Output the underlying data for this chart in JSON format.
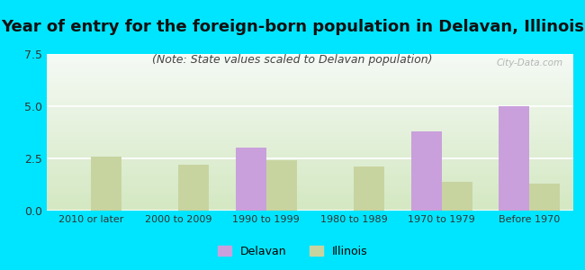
{
  "categories": [
    "2010 or later",
    "2000 to 2009",
    "1990 to 1999",
    "1980 to 1989",
    "1970 to 1979",
    "Before 1970"
  ],
  "delavan_values": [
    0,
    0,
    3.0,
    0,
    3.8,
    5.0
  ],
  "illinois_values": [
    2.6,
    2.2,
    2.4,
    2.1,
    1.4,
    1.3
  ],
  "delavan_color": "#c9a0dc",
  "illinois_color": "#c8d4a0",
  "background_outer": "#00e5ff",
  "title": "Year of entry for the foreign-born population in Delavan, Illinois",
  "subtitle": "(Note: State values scaled to Delavan population)",
  "ylim": [
    0,
    7.5
  ],
  "yticks": [
    0,
    2.5,
    5,
    7.5
  ],
  "bar_width": 0.35,
  "title_fontsize": 13,
  "subtitle_fontsize": 9,
  "legend_delavan": "Delavan",
  "legend_illinois": "Illinois",
  "watermark": "City-Data.com",
  "gradient_top": "#f5faf5",
  "gradient_bottom": "#d4e8c2"
}
